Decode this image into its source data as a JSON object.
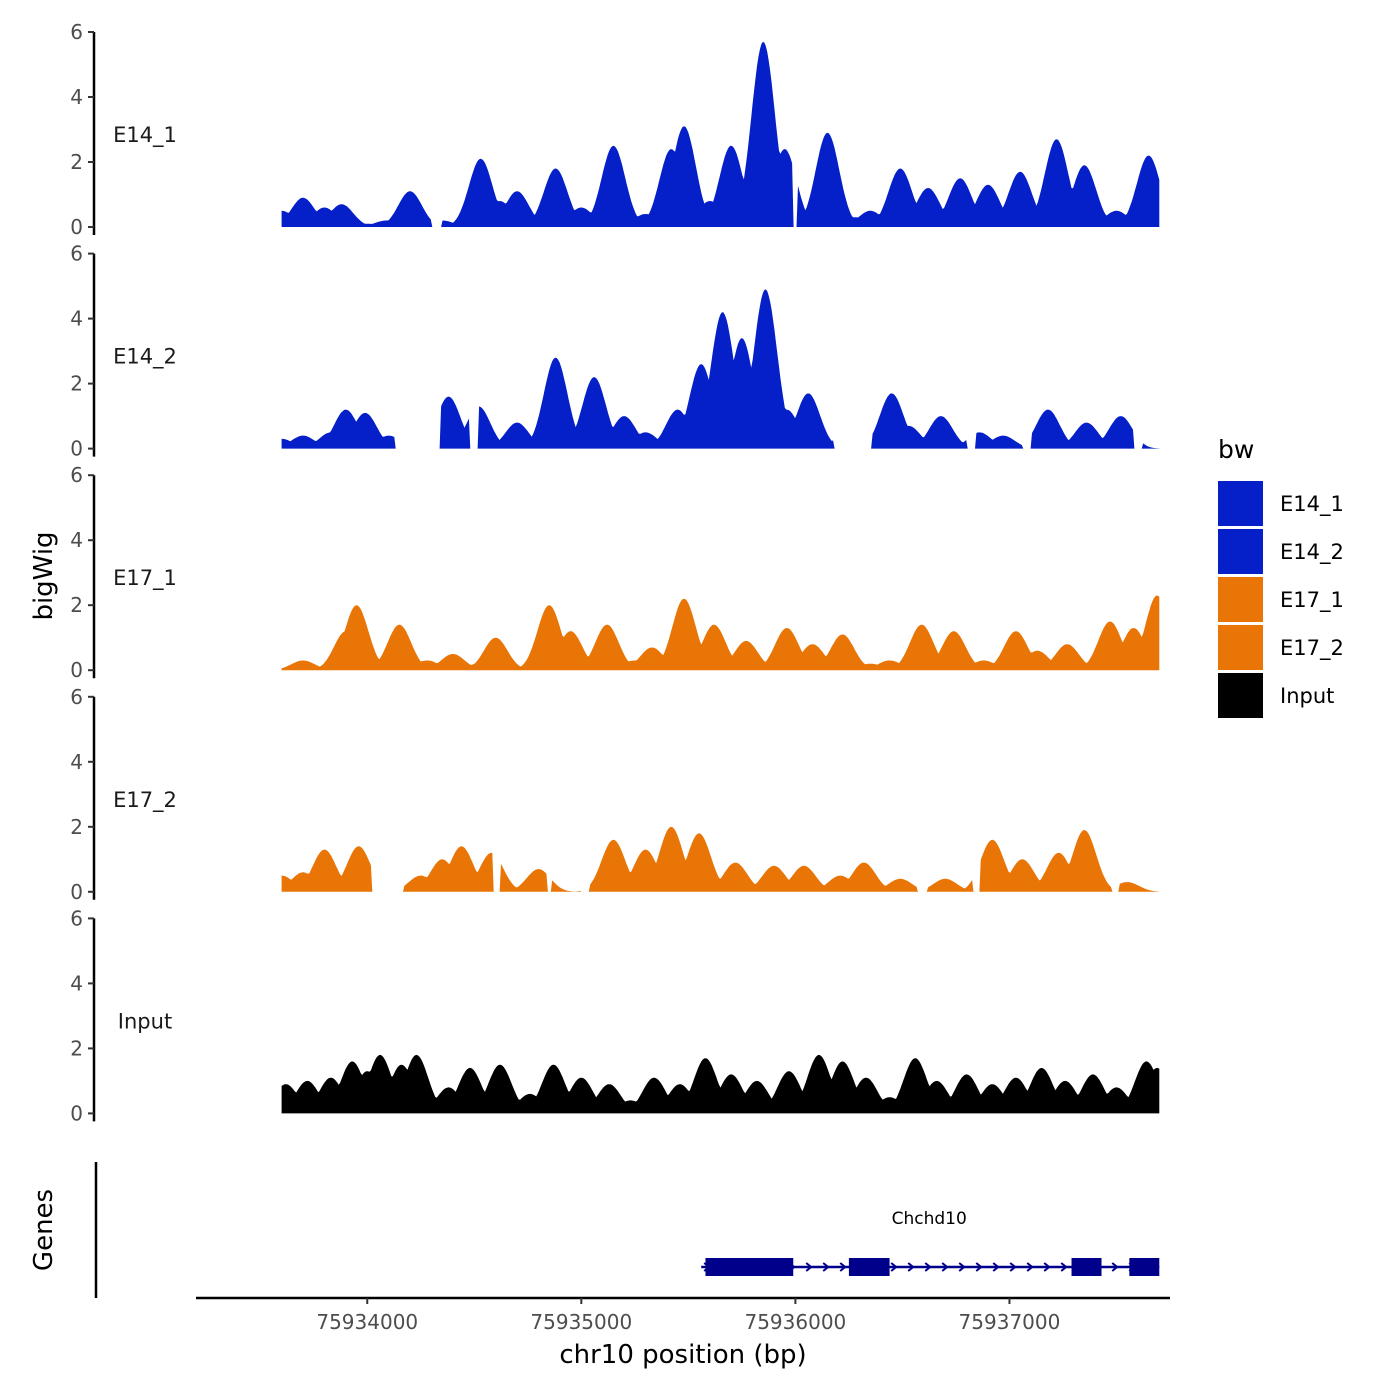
{
  "chart_data": {
    "type": "area",
    "y_axis_title": "bigWig",
    "x_axis_title": "chr10 position (bp)",
    "gene_track_title": "Genes",
    "xlim": [
      75933200,
      75937750
    ],
    "data_range": [
      75933600,
      75937700
    ],
    "ylim": [
      0,
      6
    ],
    "y_ticks": [
      0,
      2,
      4,
      6
    ],
    "x_ticks": [
      75934000,
      75935000,
      75936000,
      75937000
    ],
    "x_tick_labels": [
      "75934000",
      "75935000",
      "75936000",
      "75937000"
    ],
    "legend": {
      "title": "bw",
      "items": [
        {
          "label": "E14_1",
          "color": "#0520C8"
        },
        {
          "label": "E14_2",
          "color": "#0520C8"
        },
        {
          "label": "E17_1",
          "color": "#E87505"
        },
        {
          "label": "E17_2",
          "color": "#E87505"
        },
        {
          "label": "Input",
          "color": "#000000"
        }
      ]
    },
    "tracks": [
      {
        "name": "E14_1",
        "color": "#0520C8",
        "peaks": [
          [
            75933600,
            0.5
          ],
          [
            75933700,
            0.9
          ],
          [
            75933800,
            0.6
          ],
          [
            75933880,
            0.7
          ],
          [
            75934000,
            0.1
          ],
          [
            75934090,
            0.2
          ],
          [
            75934200,
            1.1
          ],
          [
            75934350,
            0.2
          ],
          [
            75934530,
            2.1
          ],
          [
            75934620,
            0.8
          ],
          [
            75934700,
            1.1
          ],
          [
            75934880,
            1.8
          ],
          [
            75935000,
            0.6
          ],
          [
            75935150,
            2.5
          ],
          [
            75935300,
            0.4
          ],
          [
            75935420,
            2.4
          ],
          [
            75935480,
            3.1
          ],
          [
            75935600,
            0.8
          ],
          [
            75935700,
            2.5
          ],
          [
            75935850,
            5.7
          ],
          [
            75935950,
            2.4
          ],
          [
            75936150,
            2.9
          ],
          [
            75936280,
            0.3
          ],
          [
            75936350,
            0.5
          ],
          [
            75936490,
            1.8
          ],
          [
            75936620,
            1.2
          ],
          [
            75936770,
            1.5
          ],
          [
            75936900,
            1.3
          ],
          [
            75937050,
            1.7
          ],
          [
            75937220,
            2.7
          ],
          [
            75937350,
            1.9
          ],
          [
            75937500,
            0.5
          ],
          [
            75937650,
            2.2
          ]
        ],
        "gaps": [
          [
            75934300,
            75934350
          ],
          [
            75935990,
            75936010
          ]
        ]
      },
      {
        "name": "E14_2",
        "color": "#0520C8",
        "peaks": [
          [
            75933600,
            0.3
          ],
          [
            75933700,
            0.4
          ],
          [
            75933830,
            0.5
          ],
          [
            75933900,
            1.2
          ],
          [
            75933990,
            1.1
          ],
          [
            75934100,
            0.4
          ],
          [
            75934380,
            1.6
          ],
          [
            75934520,
            1.3
          ],
          [
            75934700,
            0.8
          ],
          [
            75934880,
            2.8
          ],
          [
            75935060,
            2.2
          ],
          [
            75935200,
            1.0
          ],
          [
            75935300,
            0.5
          ],
          [
            75935450,
            1.2
          ],
          [
            75935560,
            2.6
          ],
          [
            75935660,
            4.2
          ],
          [
            75935750,
            3.4
          ],
          [
            75935860,
            4.9
          ],
          [
            75935960,
            1.2
          ],
          [
            75936060,
            1.7
          ],
          [
            75936230,
            0.4
          ],
          [
            75936450,
            1.7
          ],
          [
            75936530,
            0.7
          ],
          [
            75936680,
            1.0
          ],
          [
            75936860,
            0.5
          ],
          [
            75936970,
            0.4
          ],
          [
            75937180,
            1.2
          ],
          [
            75937360,
            0.8
          ],
          [
            75937520,
            1.0
          ]
        ],
        "gaps": [
          [
            75934130,
            75934340
          ],
          [
            75934480,
            75934520
          ],
          [
            75936180,
            75936360
          ],
          [
            75936800,
            75936840
          ],
          [
            75937060,
            75937100
          ],
          [
            75937580,
            75937620
          ]
        ]
      },
      {
        "name": "E17_1",
        "color": "#E87505",
        "peaks": [
          [
            75933700,
            0.3
          ],
          [
            75933900,
            1.2
          ],
          [
            75933950,
            2.0
          ],
          [
            75934150,
            1.4
          ],
          [
            75934280,
            0.3
          ],
          [
            75934400,
            0.5
          ],
          [
            75934520,
            0.2
          ],
          [
            75934600,
            1.0
          ],
          [
            75934730,
            0.1
          ],
          [
            75934850,
            2.0
          ],
          [
            75934950,
            1.2
          ],
          [
            75935120,
            1.4
          ],
          [
            75935250,
            0.3
          ],
          [
            75935330,
            0.7
          ],
          [
            75935480,
            2.2
          ],
          [
            75935620,
            1.4
          ],
          [
            75935770,
            0.9
          ],
          [
            75935960,
            1.3
          ],
          [
            75936080,
            0.8
          ],
          [
            75936220,
            1.1
          ],
          [
            75936350,
            0.2
          ],
          [
            75936440,
            0.3
          ],
          [
            75936590,
            1.4
          ],
          [
            75936740,
            1.2
          ],
          [
            75936880,
            0.3
          ],
          [
            75937030,
            1.2
          ],
          [
            75937130,
            0.6
          ],
          [
            75937270,
            0.8
          ],
          [
            75937470,
            1.5
          ],
          [
            75937580,
            1.3
          ],
          [
            75937690,
            2.3
          ]
        ],
        "gaps": []
      },
      {
        "name": "E17_2",
        "color": "#E87505",
        "peaks": [
          [
            75933600,
            0.5
          ],
          [
            75933700,
            0.6
          ],
          [
            75933800,
            1.3
          ],
          [
            75933960,
            1.4
          ],
          [
            75934250,
            0.5
          ],
          [
            75934350,
            1.0
          ],
          [
            75934440,
            1.4
          ],
          [
            75934580,
            1.2
          ],
          [
            75934800,
            0.7
          ],
          [
            75935150,
            1.6
          ],
          [
            75935300,
            1.3
          ],
          [
            75935420,
            2.0
          ],
          [
            75935550,
            1.8
          ],
          [
            75935720,
            0.9
          ],
          [
            75935900,
            0.8
          ],
          [
            75936040,
            0.8
          ],
          [
            75936210,
            0.5
          ],
          [
            75936320,
            0.9
          ],
          [
            75936490,
            0.4
          ],
          [
            75936700,
            0.4
          ],
          [
            75936920,
            1.6
          ],
          [
            75937060,
            1.0
          ],
          [
            75937230,
            1.2
          ],
          [
            75937350,
            1.9
          ],
          [
            75937550,
            0.3
          ]
        ],
        "gaps": [
          [
            75934020,
            75934170
          ],
          [
            75934590,
            75934620
          ],
          [
            75934840,
            75934860
          ],
          [
            75935000,
            75935040
          ],
          [
            75936570,
            75936620
          ],
          [
            75936830,
            75936860
          ],
          [
            75937480,
            75937510
          ]
        ]
      },
      {
        "name": "Input",
        "color": "#000000",
        "peaks": [
          [
            75933620,
            0.9
          ],
          [
            75933720,
            1.0
          ],
          [
            75933830,
            1.1
          ],
          [
            75933930,
            1.6
          ],
          [
            75934000,
            1.3
          ],
          [
            75934060,
            1.8
          ],
          [
            75934160,
            1.5
          ],
          [
            75934230,
            1.8
          ],
          [
            75934380,
            0.8
          ],
          [
            75934480,
            1.4
          ],
          [
            75934620,
            1.5
          ],
          [
            75934760,
            0.6
          ],
          [
            75934870,
            1.5
          ],
          [
            75935000,
            1.1
          ],
          [
            75935130,
            0.9
          ],
          [
            75935230,
            0.4
          ],
          [
            75935340,
            1.1
          ],
          [
            75935460,
            0.9
          ],
          [
            75935580,
            1.7
          ],
          [
            75935700,
            1.2
          ],
          [
            75935820,
            1.0
          ],
          [
            75935970,
            1.3
          ],
          [
            75936110,
            1.8
          ],
          [
            75936220,
            1.6
          ],
          [
            75936330,
            1.1
          ],
          [
            75936440,
            0.5
          ],
          [
            75936560,
            1.7
          ],
          [
            75936660,
            1.0
          ],
          [
            75936800,
            1.2
          ],
          [
            75936920,
            0.9
          ],
          [
            75937030,
            1.1
          ],
          [
            75937150,
            1.4
          ],
          [
            75937260,
            1.0
          ],
          [
            75937390,
            1.2
          ],
          [
            75937500,
            0.8
          ],
          [
            75937640,
            1.6
          ],
          [
            75937690,
            1.4
          ]
        ],
        "gaps": []
      }
    ],
    "gene": {
      "name": "Chchd10",
      "color": "#00008B",
      "start": 75935560,
      "end": 75937700,
      "exons": [
        [
          75935580,
          75935990
        ],
        [
          75936250,
          75936440
        ],
        [
          75937290,
          75937430
        ],
        [
          75937560,
          75937700
        ]
      ]
    }
  }
}
